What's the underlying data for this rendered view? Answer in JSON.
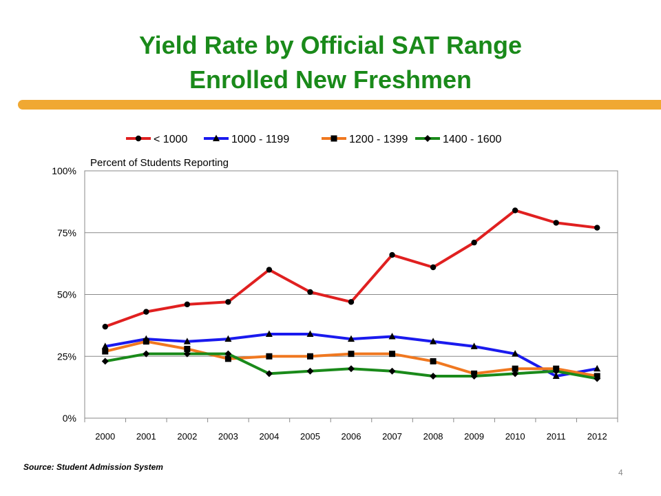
{
  "slide": {
    "title_line1": "Yield Rate by Official SAT Range",
    "title_line2": "Enrolled New Freshmen",
    "source": "Source:  Student Admission System",
    "page_number": "4",
    "accent_color": "#f0a832",
    "title_color": "#1a8a1a"
  },
  "chart_data": {
    "type": "line",
    "title": "",
    "annotation": "Percent of Students Reporting",
    "xlabel": "",
    "ylabel": "",
    "ylim": [
      0,
      100
    ],
    "yticks": [
      0,
      25,
      50,
      75,
      100
    ],
    "ytick_labels": [
      "0%",
      "25%",
      "50%",
      "75%",
      "100%"
    ],
    "grid": "horizontal",
    "legend_position": "top",
    "categories": [
      "2000",
      "2001",
      "2002",
      "2003",
      "2004",
      "2005",
      "2006",
      "2007",
      "2008",
      "2009",
      "2010",
      "2011",
      "2012"
    ],
    "series": [
      {
        "name": "< 1000",
        "color": "#e02020",
        "marker": "circle",
        "values": [
          37,
          43,
          46,
          47,
          60,
          51,
          47,
          66,
          61,
          71,
          84,
          79,
          77
        ]
      },
      {
        "name": "1000 - 1199",
        "color": "#1a1aee",
        "marker": "triangle",
        "values": [
          29,
          32,
          31,
          32,
          34,
          34,
          32,
          33,
          31,
          29,
          26,
          17,
          20
        ]
      },
      {
        "name": "1200 - 1399",
        "color": "#f07820",
        "marker": "square",
        "values": [
          27,
          31,
          28,
          24,
          25,
          25,
          26,
          26,
          23,
          18,
          20,
          20,
          17
        ]
      },
      {
        "name": "1400 - 1600",
        "color": "#1a8a1a",
        "marker": "diamond",
        "values": [
          23,
          26,
          26,
          26,
          18,
          19,
          20,
          19,
          17,
          17,
          18,
          19,
          16
        ]
      }
    ]
  }
}
